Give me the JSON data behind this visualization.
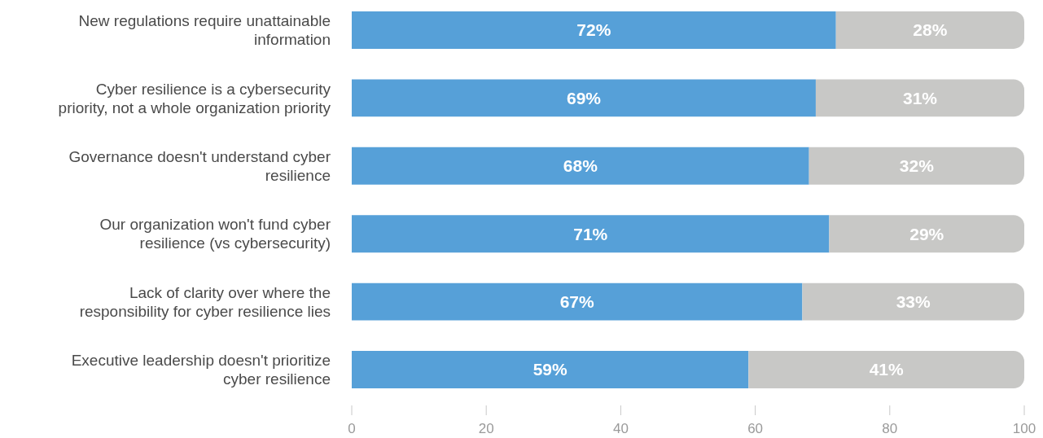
{
  "chart_data": {
    "type": "bar",
    "orientation": "horizontal",
    "stacked": true,
    "categories": [
      "New regulations require unattainable information",
      "Cyber resilience is a cybersecurity priority, not a whole organization priority",
      "Governance doesn't understand cyber resilience",
      "Our organization won't fund cyber resilience (vs cybersecurity)",
      "Lack of clarity over where the responsibility for cyber resilience lies",
      "Executive leadership doesn't prioritize cyber resilience"
    ],
    "series": [
      {
        "color": "#56a0d8",
        "values": [
          72,
          69,
          68,
          71,
          67,
          59
        ],
        "value_labels": [
          "72%",
          "69%",
          "68%",
          "71%",
          "67%",
          "59%"
        ]
      },
      {
        "color": "#c8c8c6",
        "values": [
          28,
          31,
          32,
          29,
          33,
          41
        ],
        "value_labels": [
          "28%",
          "31%",
          "32%",
          "29%",
          "33%",
          "41%"
        ]
      }
    ],
    "xlim": [
      0,
      100
    ],
    "xticks": [
      0,
      20,
      40,
      60,
      80,
      100
    ],
    "grid": false
  }
}
